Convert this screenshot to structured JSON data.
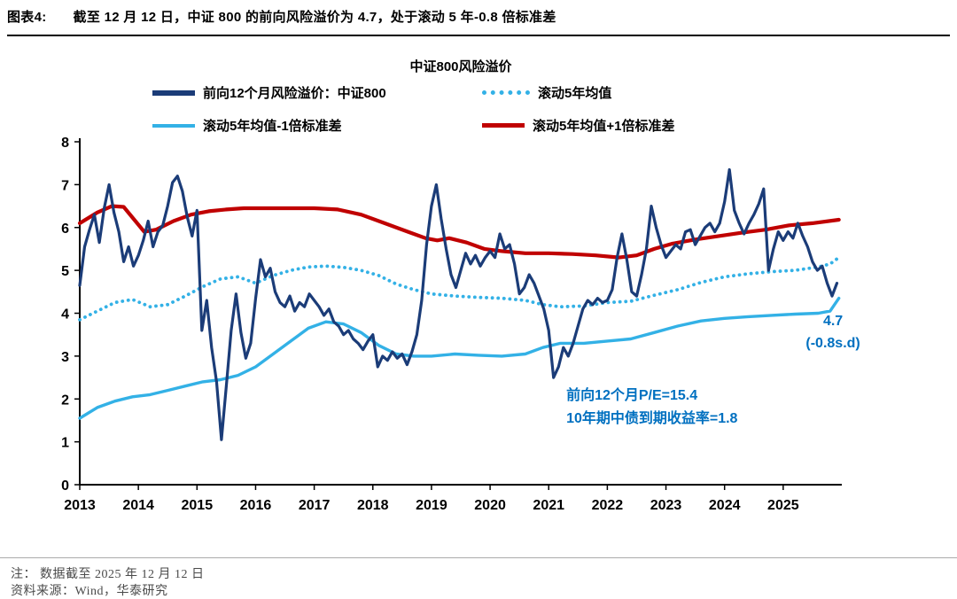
{
  "header": {
    "tag": "图表4:",
    "title": "截至 12 月 12 日，中证 800 的前向风险溢价为 4.7，处于滚动 5 年-0.8 倍标准差"
  },
  "colors": {
    "navy": "#1b3c78",
    "light_blue": "#33b1e6",
    "red": "#c00000",
    "annotation_blue": "#0070c0",
    "axis": "#000000"
  },
  "chart_data": {
    "type": "line",
    "title": "中证800风险溢价",
    "xlabel": "",
    "ylabel": "",
    "xlim": [
      2013,
      2026
    ],
    "ylim": [
      0,
      8
    ],
    "y_ticks": [
      0,
      1,
      2,
      3,
      4,
      5,
      6,
      7,
      8
    ],
    "x_ticks": [
      2013,
      2014,
      2015,
      2016,
      2017,
      2018,
      2019,
      2020,
      2021,
      2022,
      2023,
      2024,
      2025
    ],
    "grid": false,
    "legend_position": "top",
    "series": [
      {
        "name": "前向12个月风险溢价：中证800",
        "color": "#1b3c78",
        "style": "solid",
        "width": 3.2,
        "x_start": 2013.0,
        "x_step": 0.083333,
        "values": [
          4.65,
          5.55,
          5.95,
          6.3,
          5.65,
          6.45,
          7.0,
          6.35,
          5.9,
          5.2,
          5.55,
          5.1,
          5.35,
          5.7,
          6.15,
          5.55,
          5.9,
          6.05,
          6.5,
          7.05,
          7.2,
          6.85,
          6.25,
          5.8,
          6.4,
          3.6,
          4.3,
          3.2,
          2.4,
          1.05,
          2.3,
          3.6,
          4.45,
          3.55,
          2.95,
          3.3,
          4.35,
          5.25,
          4.85,
          5.05,
          4.5,
          4.25,
          4.15,
          4.4,
          4.05,
          4.25,
          4.15,
          4.45,
          4.3,
          4.15,
          3.95,
          4.1,
          3.8,
          3.7,
          3.5,
          3.6,
          3.4,
          3.3,
          3.15,
          3.35,
          3.5,
          2.75,
          3.0,
          2.9,
          3.1,
          2.95,
          3.05,
          2.8,
          3.1,
          3.5,
          4.3,
          5.6,
          6.5,
          7.0,
          6.2,
          5.5,
          4.9,
          4.6,
          5.0,
          5.4,
          5.15,
          5.35,
          5.1,
          5.3,
          5.45,
          5.3,
          5.85,
          5.5,
          5.6,
          5.15,
          4.45,
          4.6,
          4.9,
          4.7,
          4.4,
          4.1,
          3.6,
          2.5,
          2.75,
          3.2,
          3.0,
          3.3,
          3.7,
          4.1,
          4.3,
          4.2,
          4.35,
          4.25,
          4.3,
          4.55,
          5.3,
          5.85,
          5.25,
          4.5,
          4.4,
          4.9,
          5.5,
          6.5,
          6.0,
          5.6,
          5.3,
          5.45,
          5.6,
          5.5,
          5.9,
          5.95,
          5.6,
          5.8,
          6.0,
          6.1,
          5.9,
          6.1,
          6.6,
          7.35,
          6.4,
          6.1,
          5.85,
          6.1,
          6.3,
          6.55,
          6.9,
          5.0,
          5.5,
          5.9,
          5.7,
          5.9,
          5.75,
          6.1,
          5.8,
          5.55,
          5.2,
          5.0,
          5.1,
          4.7,
          4.4,
          4.7
        ]
      },
      {
        "name": "滚动5年均值",
        "color": "#33b1e6",
        "style": "dotted",
        "width": 3.8,
        "points": [
          [
            2013.0,
            3.85
          ],
          [
            2013.3,
            4.05
          ],
          [
            2013.6,
            4.25
          ],
          [
            2013.9,
            4.32
          ],
          [
            2014.2,
            4.15
          ],
          [
            2014.5,
            4.2
          ],
          [
            2014.8,
            4.4
          ],
          [
            2015.1,
            4.62
          ],
          [
            2015.4,
            4.8
          ],
          [
            2015.7,
            4.85
          ],
          [
            2016.0,
            4.7
          ],
          [
            2016.3,
            4.88
          ],
          [
            2016.6,
            5.0
          ],
          [
            2016.9,
            5.08
          ],
          [
            2017.2,
            5.1
          ],
          [
            2017.5,
            5.07
          ],
          [
            2017.8,
            5.0
          ],
          [
            2018.1,
            4.88
          ],
          [
            2018.4,
            4.68
          ],
          [
            2018.7,
            4.55
          ],
          [
            2019.0,
            4.45
          ],
          [
            2019.4,
            4.4
          ],
          [
            2019.8,
            4.37
          ],
          [
            2020.2,
            4.35
          ],
          [
            2020.6,
            4.3
          ],
          [
            2020.9,
            4.2
          ],
          [
            2021.2,
            4.15
          ],
          [
            2021.6,
            4.17
          ],
          [
            2022.0,
            4.25
          ],
          [
            2022.4,
            4.28
          ],
          [
            2022.8,
            4.42
          ],
          [
            2023.2,
            4.55
          ],
          [
            2023.6,
            4.72
          ],
          [
            2024.0,
            4.85
          ],
          [
            2024.4,
            4.92
          ],
          [
            2024.8,
            4.97
          ],
          [
            2025.2,
            5.0
          ],
          [
            2025.6,
            5.08
          ],
          [
            2025.8,
            5.15
          ],
          [
            2025.95,
            5.3
          ]
        ]
      },
      {
        "name": "滚动5年均值-1倍标准差",
        "color": "#33b1e6",
        "style": "solid",
        "width": 3.4,
        "points": [
          [
            2013.0,
            1.55
          ],
          [
            2013.3,
            1.8
          ],
          [
            2013.6,
            1.95
          ],
          [
            2013.9,
            2.05
          ],
          [
            2014.2,
            2.1
          ],
          [
            2014.5,
            2.2
          ],
          [
            2014.8,
            2.3
          ],
          [
            2015.1,
            2.4
          ],
          [
            2015.4,
            2.45
          ],
          [
            2015.7,
            2.55
          ],
          [
            2016.0,
            2.75
          ],
          [
            2016.3,
            3.05
          ],
          [
            2016.6,
            3.35
          ],
          [
            2016.9,
            3.65
          ],
          [
            2017.2,
            3.8
          ],
          [
            2017.5,
            3.75
          ],
          [
            2017.8,
            3.55
          ],
          [
            2018.1,
            3.25
          ],
          [
            2018.4,
            3.05
          ],
          [
            2018.7,
            3.0
          ],
          [
            2019.0,
            3.0
          ],
          [
            2019.4,
            3.05
          ],
          [
            2019.8,
            3.02
          ],
          [
            2020.2,
            3.0
          ],
          [
            2020.6,
            3.05
          ],
          [
            2020.9,
            3.2
          ],
          [
            2021.2,
            3.3
          ],
          [
            2021.6,
            3.3
          ],
          [
            2022.0,
            3.35
          ],
          [
            2022.4,
            3.4
          ],
          [
            2022.8,
            3.55
          ],
          [
            2023.2,
            3.7
          ],
          [
            2023.6,
            3.82
          ],
          [
            2024.0,
            3.88
          ],
          [
            2024.4,
            3.92
          ],
          [
            2024.8,
            3.95
          ],
          [
            2025.2,
            3.98
          ],
          [
            2025.6,
            4.0
          ],
          [
            2025.8,
            4.05
          ],
          [
            2025.95,
            4.35
          ]
        ]
      },
      {
        "name": "滚动5年均值+1倍标准差",
        "color": "#c00000",
        "style": "solid",
        "width": 4.2,
        "points": [
          [
            2013.0,
            6.1
          ],
          [
            2013.3,
            6.35
          ],
          [
            2013.55,
            6.5
          ],
          [
            2013.75,
            6.48
          ],
          [
            2013.95,
            6.15
          ],
          [
            2014.1,
            5.9
          ],
          [
            2014.3,
            5.95
          ],
          [
            2014.6,
            6.15
          ],
          [
            2014.9,
            6.3
          ],
          [
            2015.2,
            6.38
          ],
          [
            2015.5,
            6.42
          ],
          [
            2015.8,
            6.45
          ],
          [
            2016.2,
            6.45
          ],
          [
            2016.6,
            6.45
          ],
          [
            2017.0,
            6.45
          ],
          [
            2017.4,
            6.42
          ],
          [
            2017.8,
            6.3
          ],
          [
            2018.2,
            6.1
          ],
          [
            2018.6,
            5.9
          ],
          [
            2018.9,
            5.75
          ],
          [
            2019.1,
            5.7
          ],
          [
            2019.3,
            5.75
          ],
          [
            2019.6,
            5.65
          ],
          [
            2019.9,
            5.5
          ],
          [
            2020.2,
            5.45
          ],
          [
            2020.6,
            5.4
          ],
          [
            2021.0,
            5.4
          ],
          [
            2021.4,
            5.38
          ],
          [
            2021.8,
            5.35
          ],
          [
            2022.2,
            5.3
          ],
          [
            2022.5,
            5.35
          ],
          [
            2022.8,
            5.5
          ],
          [
            2023.1,
            5.62
          ],
          [
            2023.5,
            5.72
          ],
          [
            2023.9,
            5.8
          ],
          [
            2024.3,
            5.88
          ],
          [
            2024.7,
            5.95
          ],
          [
            2025.1,
            6.05
          ],
          [
            2025.5,
            6.1
          ],
          [
            2025.95,
            6.18
          ]
        ]
      }
    ],
    "annotations": [
      {
        "text": "4.7",
        "x": 2025.85,
        "y": 3.72,
        "anchor": "middle"
      },
      {
        "text": "(-0.8s.d)",
        "x": 2025.85,
        "y": 3.2,
        "anchor": "middle"
      },
      {
        "text": "前向12个月P/E=15.4",
        "x": 2021.3,
        "y": 1.98,
        "anchor": "start"
      },
      {
        "text": "10年期中债到期收益率=1.8",
        "x": 2021.3,
        "y": 1.45,
        "anchor": "start"
      }
    ]
  },
  "footer": {
    "note": "注：  数据截至 2025 年 12 月 12 日",
    "source": "资料来源：Wind，华泰研究"
  }
}
